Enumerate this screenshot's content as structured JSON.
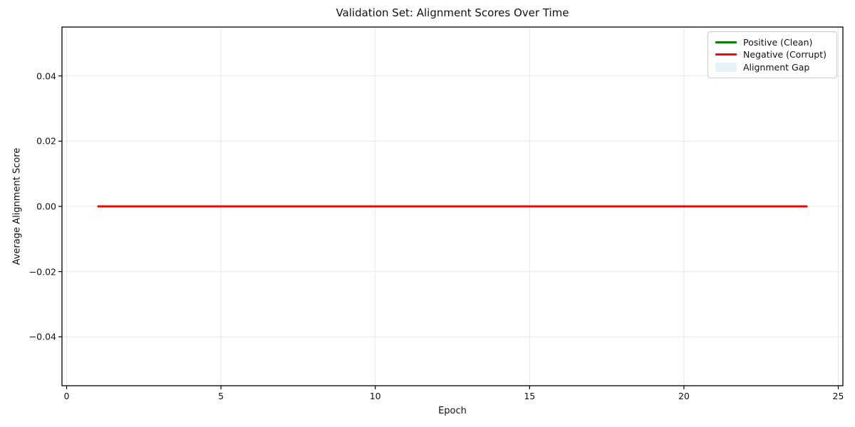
{
  "chart_data": {
    "type": "line",
    "title": "Validation Set: Alignment Scores Over Time",
    "xlabel": "Epoch",
    "ylabel": "Average Alignment Score",
    "xlim": [
      -0.15,
      25.15
    ],
    "ylim": [
      -0.055,
      0.055
    ],
    "x_ticks": [
      0,
      5,
      10,
      15,
      20,
      25
    ],
    "x_tick_labels": [
      "0",
      "5",
      "10",
      "15",
      "20",
      "25"
    ],
    "y_ticks": [
      -0.04,
      -0.02,
      0,
      0.02,
      0.04
    ],
    "y_tick_labels": [
      "−0.04",
      "−0.02",
      "0.00",
      "0.02",
      "0.04"
    ],
    "grid": true,
    "legend_position": "upper right",
    "x": [
      1,
      2,
      3,
      4,
      5,
      6,
      7,
      8,
      9,
      10,
      11,
      12,
      13,
      14,
      15,
      16,
      17,
      18,
      19,
      20,
      21,
      22,
      23,
      24
    ],
    "series": [
      {
        "name": "Positive (Clean)",
        "color": "#008000",
        "values": [
          0,
          0,
          0,
          0,
          0,
          0,
          0,
          0,
          0,
          0,
          0,
          0,
          0,
          0,
          0,
          0,
          0,
          0,
          0,
          0,
          0,
          0,
          0,
          0
        ]
      },
      {
        "name": "Negative (Corrupt)",
        "color": "#ff0000",
        "values": [
          0,
          0,
          0,
          0,
          0,
          0,
          0,
          0,
          0,
          0,
          0,
          0,
          0,
          0,
          0,
          0,
          0,
          0,
          0,
          0,
          0,
          0,
          0,
          0
        ]
      }
    ],
    "fill": {
      "name": "Alignment Gap",
      "color": "#add8e6",
      "opacity": 0.3
    }
  },
  "colors": {
    "background": "#ffffff",
    "grid": "#e7e7e7",
    "spine": "#000000",
    "legend_border": "#cccccc",
    "text": "#111111"
  }
}
